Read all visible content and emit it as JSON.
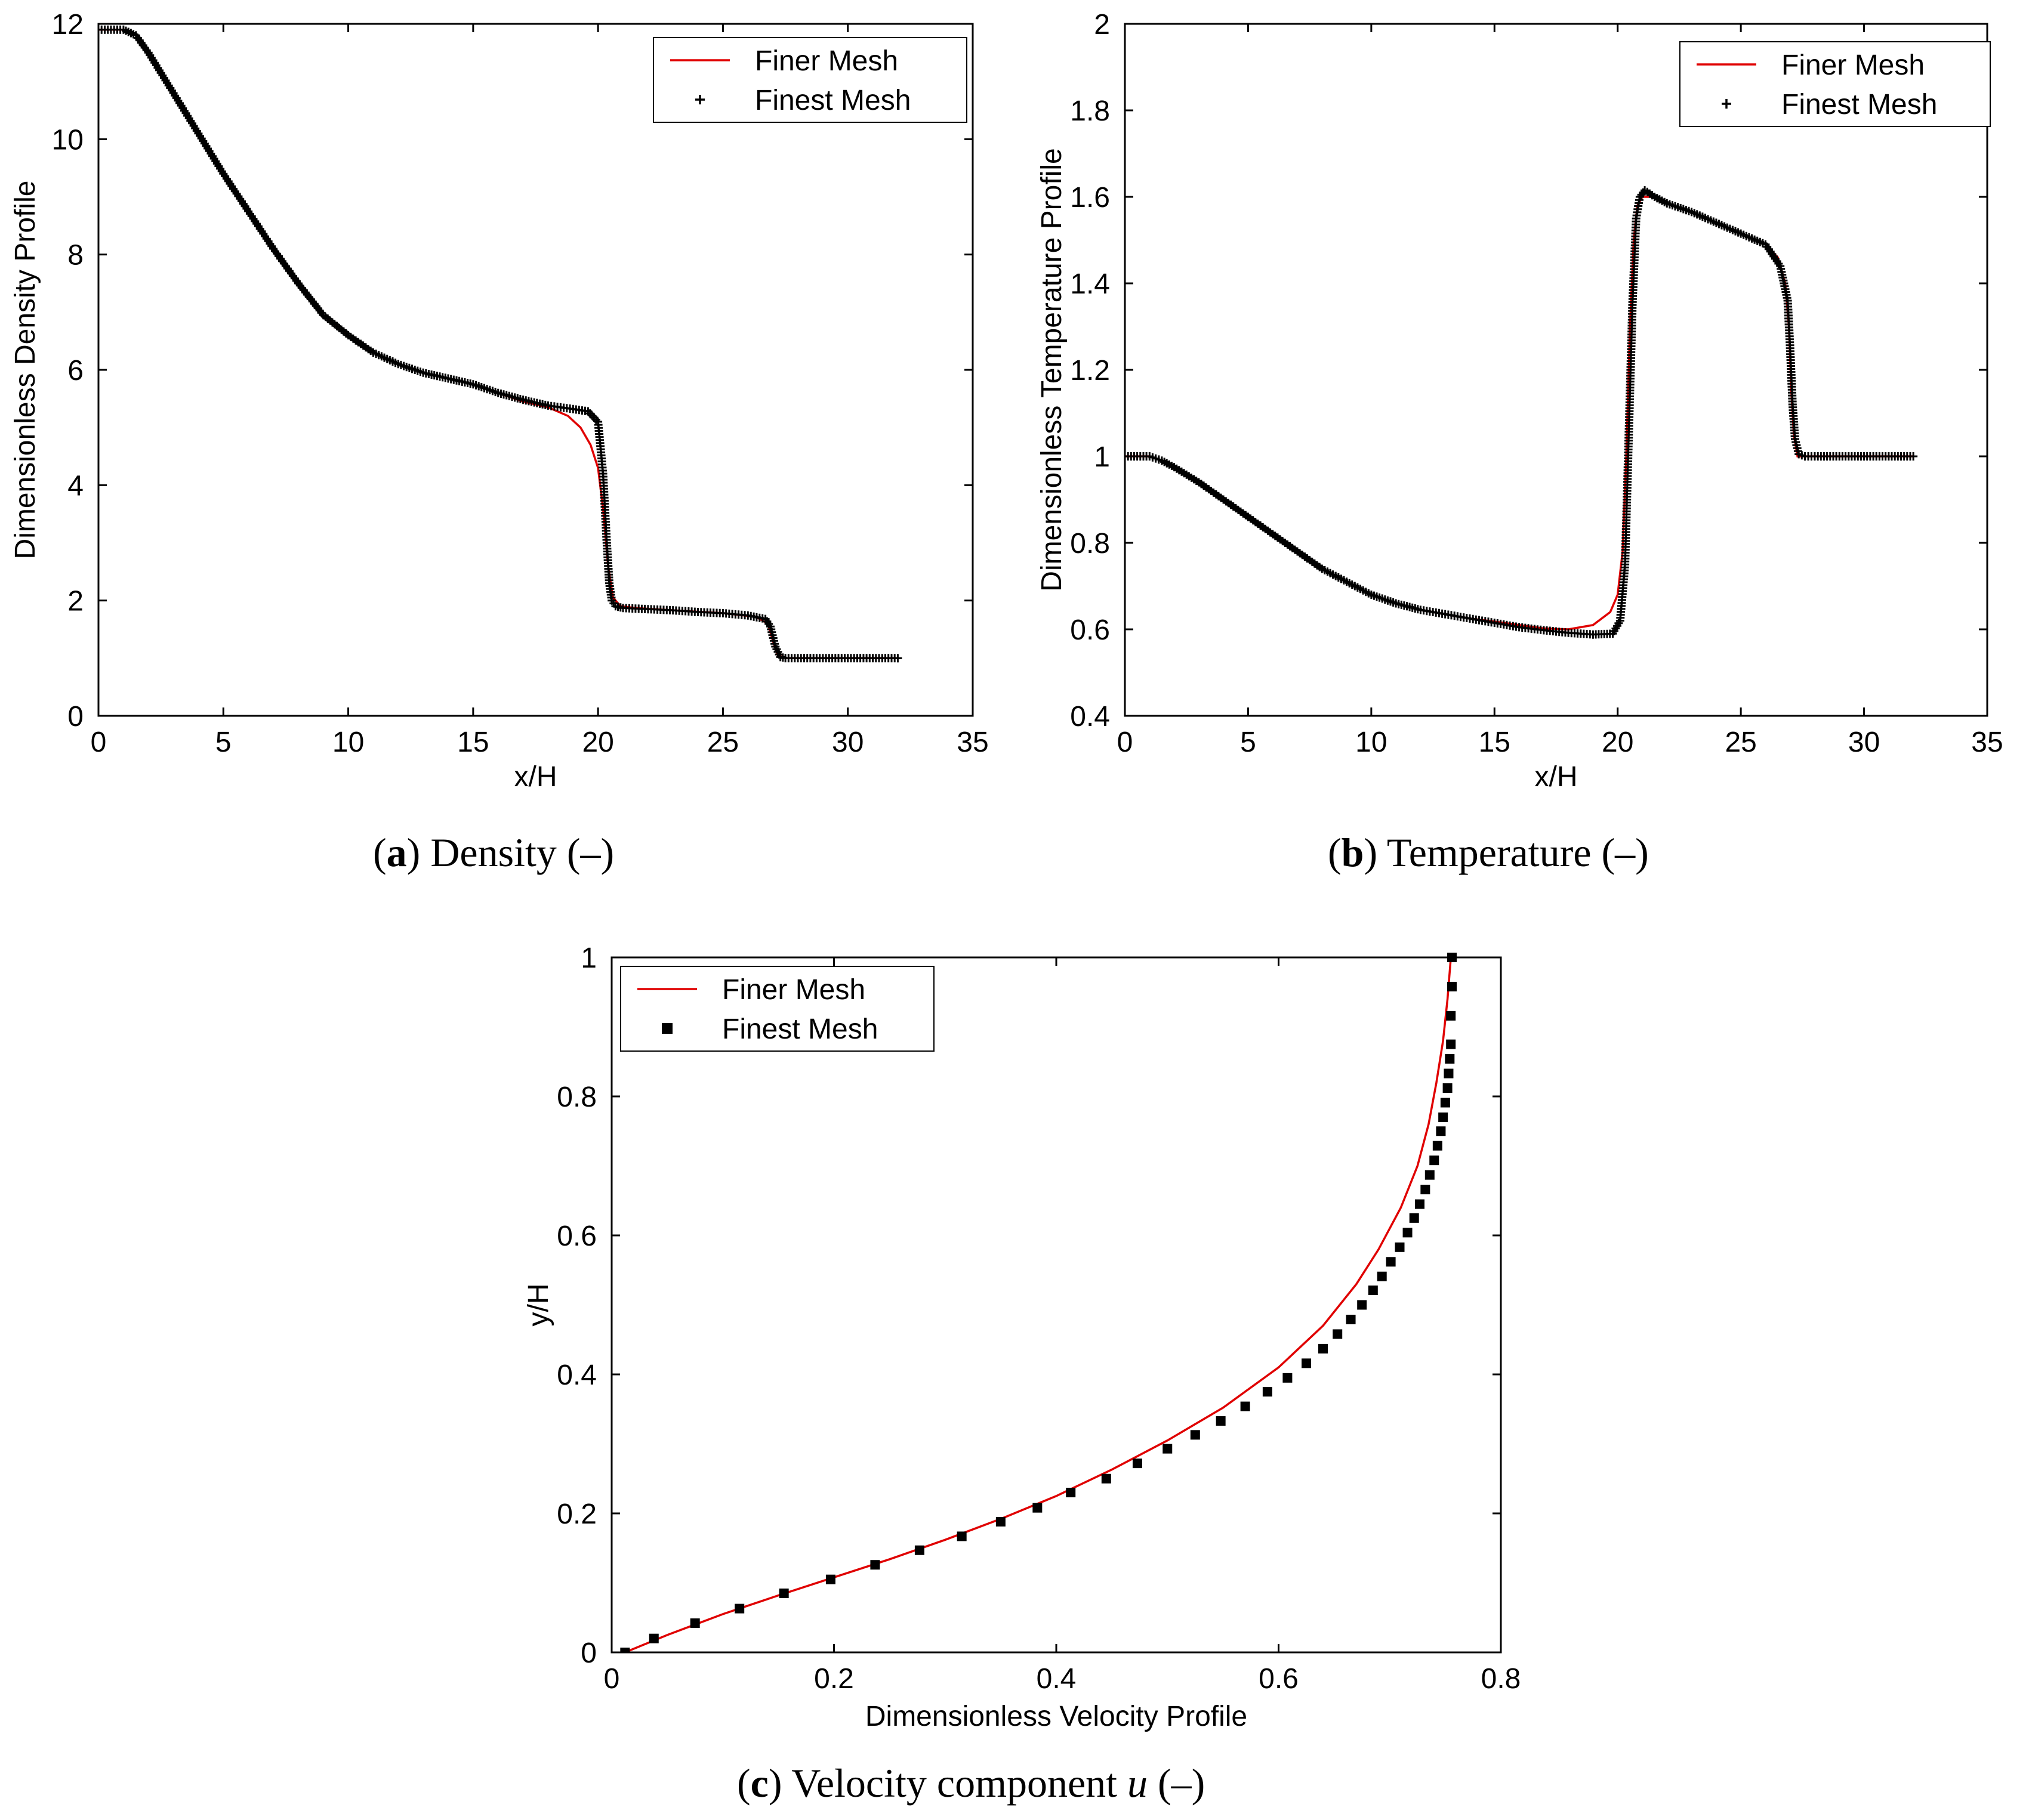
{
  "chart_data": [
    {
      "id": "a",
      "type": "line",
      "xlabel": "x/H",
      "ylabel": "Dimensionless Density Profile",
      "xlim": [
        0,
        35
      ],
      "ylim": [
        0,
        12
      ],
      "xticks": [
        0,
        5,
        10,
        15,
        20,
        25,
        30,
        35
      ],
      "yticks": [
        0,
        2,
        4,
        6,
        8,
        10,
        12
      ],
      "legend": {
        "position": "top-right",
        "entries": [
          "Finer Mesh",
          "Finest Mesh"
        ]
      },
      "caption": {
        "letter": "a",
        "text": " Density (–)"
      },
      "series": [
        {
          "name": "Finer Mesh",
          "style": "line",
          "color": "#e00000",
          "x": [
            0,
            1,
            1.5,
            2,
            3,
            4,
            5,
            6,
            7,
            8,
            9,
            10,
            11,
            12,
            13,
            14,
            15,
            16,
            17,
            18,
            18.8,
            19.3,
            19.7,
            20,
            20.2,
            20.4,
            20.6,
            20.9,
            21.5,
            23,
            25,
            26.3,
            26.8,
            27,
            27.2,
            27.5,
            28,
            30,
            32
          ],
          "y": [
            11.9,
            11.9,
            11.8,
            11.5,
            10.8,
            10.1,
            9.4,
            8.75,
            8.1,
            7.5,
            6.95,
            6.6,
            6.3,
            6.1,
            5.95,
            5.85,
            5.75,
            5.6,
            5.45,
            5.35,
            5.2,
            5.0,
            4.7,
            4.3,
            3.6,
            2.6,
            2.05,
            1.9,
            1.87,
            1.83,
            1.78,
            1.72,
            1.6,
            1.3,
            1.05,
            1.0,
            1.0,
            1.0,
            1.0
          ]
        },
        {
          "name": "Finest Mesh",
          "style": "plus",
          "color": "#000000",
          "x": [
            0,
            1,
            1.5,
            2,
            3,
            4,
            5,
            6,
            7,
            8,
            9,
            10,
            11,
            12,
            13,
            14,
            15,
            16,
            17,
            18,
            19,
            19.6,
            20,
            20.2,
            20.35,
            20.45,
            20.55,
            20.7,
            21,
            22,
            23,
            24,
            25,
            26,
            26.7,
            26.9,
            27.1,
            27.3,
            27.5,
            28,
            29,
            30,
            31,
            32
          ],
          "y": [
            11.9,
            11.9,
            11.8,
            11.5,
            10.8,
            10.1,
            9.4,
            8.75,
            8.1,
            7.5,
            6.95,
            6.6,
            6.3,
            6.1,
            5.95,
            5.85,
            5.75,
            5.6,
            5.48,
            5.38,
            5.32,
            5.28,
            5.1,
            4.2,
            3.0,
            2.3,
            2.0,
            1.9,
            1.87,
            1.85,
            1.83,
            1.8,
            1.78,
            1.74,
            1.68,
            1.55,
            1.2,
            1.02,
            1.0,
            1.0,
            1.0,
            1.0,
            1.0,
            1.0
          ]
        }
      ]
    },
    {
      "id": "b",
      "type": "line",
      "xlabel": "x/H",
      "ylabel": "Dimensionless Temperature Profile",
      "xlim": [
        0,
        35
      ],
      "ylim": [
        0.4,
        2
      ],
      "xticks": [
        0,
        5,
        10,
        15,
        20,
        25,
        30,
        35
      ],
      "yticks": [
        0.4,
        0.6,
        0.8,
        1,
        1.2,
        1.4,
        1.6,
        1.8,
        2
      ],
      "legend": {
        "position": "top-right",
        "entries": [
          "Finer Mesh",
          "Finest Mesh"
        ]
      },
      "caption": {
        "letter": "b",
        "text": " Temperature (–)"
      },
      "series": [
        {
          "name": "Finer Mesh",
          "style": "line",
          "color": "#e00000",
          "x": [
            0,
            1,
            1.5,
            2,
            3,
            4,
            5,
            6,
            7,
            8,
            9,
            10,
            11,
            12,
            13,
            14,
            15,
            16,
            17,
            18,
            19,
            19.7,
            20,
            20.2,
            20.35,
            20.5,
            20.65,
            20.8,
            21,
            21.5,
            22,
            23,
            24,
            25,
            26,
            26.5,
            26.8,
            26.95,
            27.05,
            27.15,
            27.3,
            27.6,
            28,
            30,
            32
          ],
          "y": [
            1.0,
            1.0,
            0.99,
            0.975,
            0.94,
            0.9,
            0.86,
            0.82,
            0.78,
            0.74,
            0.71,
            0.68,
            0.66,
            0.645,
            0.635,
            0.625,
            0.618,
            0.61,
            0.602,
            0.6,
            0.61,
            0.64,
            0.68,
            0.78,
            1.0,
            1.3,
            1.5,
            1.58,
            1.6,
            1.6,
            1.585,
            1.565,
            1.54,
            1.515,
            1.49,
            1.46,
            1.4,
            1.3,
            1.15,
            1.05,
            1.0,
            1.0,
            1.0,
            1.0,
            1.0
          ]
        },
        {
          "name": "Finest Mesh",
          "style": "plus",
          "color": "#000000",
          "x": [
            0,
            1,
            1.5,
            2,
            3,
            4,
            5,
            6,
            7,
            8,
            9,
            10,
            11,
            12,
            13,
            14,
            15,
            16,
            17,
            18,
            19,
            19.8,
            20.1,
            20.3,
            20.45,
            20.6,
            20.75,
            20.9,
            21.1,
            21.5,
            22,
            23,
            24,
            25,
            26,
            26.6,
            26.9,
            27.0,
            27.1,
            27.2,
            27.35,
            27.6,
            28,
            29,
            30,
            31,
            32
          ],
          "y": [
            1.0,
            1.0,
            0.99,
            0.975,
            0.94,
            0.9,
            0.86,
            0.82,
            0.78,
            0.74,
            0.71,
            0.68,
            0.66,
            0.645,
            0.635,
            0.625,
            0.615,
            0.605,
            0.598,
            0.592,
            0.588,
            0.59,
            0.62,
            0.75,
            1.05,
            1.35,
            1.55,
            1.6,
            1.615,
            1.6,
            1.585,
            1.565,
            1.54,
            1.515,
            1.49,
            1.44,
            1.36,
            1.25,
            1.12,
            1.04,
            1.005,
            1.0,
            1.0,
            1.0,
            1.0,
            1.0,
            1.0
          ]
        }
      ]
    },
    {
      "id": "c",
      "type": "line",
      "xlabel": "Dimensionless Velocity Profile",
      "ylabel": "y/H",
      "xlim": [
        0,
        0.8
      ],
      "ylim": [
        0,
        1
      ],
      "xticks": [
        0,
        0.2,
        0.4,
        0.6,
        0.8
      ],
      "yticks": [
        0,
        0.2,
        0.4,
        0.6,
        0.8,
        1
      ],
      "legend": {
        "position": "top-left",
        "entries": [
          "Finer Mesh",
          "Finest Mesh"
        ]
      },
      "caption": {
        "letter": "c",
        "text": " Velocity component ",
        "var": "u",
        "tail": " (–)"
      },
      "series": [
        {
          "name": "Finer Mesh",
          "style": "line",
          "color": "#e00000",
          "x": [
            0.012,
            0.05,
            0.1,
            0.15,
            0.2,
            0.25,
            0.3,
            0.35,
            0.4,
            0.45,
            0.5,
            0.55,
            0.6,
            0.64,
            0.67,
            0.69,
            0.71,
            0.725,
            0.735,
            0.742,
            0.748,
            0.752,
            0.755
          ],
          "y": [
            0.0,
            0.025,
            0.055,
            0.082,
            0.108,
            0.134,
            0.162,
            0.192,
            0.225,
            0.263,
            0.305,
            0.352,
            0.41,
            0.47,
            0.53,
            0.58,
            0.64,
            0.7,
            0.76,
            0.82,
            0.88,
            0.94,
            1.0
          ]
        },
        {
          "name": "Finest Mesh",
          "style": "square",
          "color": "#000000",
          "x": [
            0.012,
            0.038,
            0.075,
            0.115,
            0.155,
            0.197,
            0.237,
            0.277,
            0.315,
            0.35,
            0.383,
            0.413,
            0.445,
            0.473,
            0.5,
            0.525,
            0.548,
            0.57,
            0.59,
            0.608,
            0.625,
            0.64,
            0.653,
            0.665,
            0.675,
            0.685,
            0.693,
            0.701,
            0.709,
            0.716,
            0.722,
            0.727,
            0.732,
            0.736,
            0.74,
            0.743,
            0.746,
            0.748,
            0.75,
            0.752,
            0.753,
            0.754,
            0.755,
            0.755,
            0.756,
            0.756
          ],
          "y": [
            0.0,
            0.02,
            0.042,
            0.063,
            0.085,
            0.105,
            0.126,
            0.147,
            0.167,
            0.188,
            0.208,
            0.23,
            0.25,
            0.272,
            0.293,
            0.313,
            0.333,
            0.354,
            0.375,
            0.395,
            0.416,
            0.437,
            0.458,
            0.479,
            0.5,
            0.521,
            0.541,
            0.562,
            0.583,
            0.604,
            0.625,
            0.645,
            0.666,
            0.687,
            0.708,
            0.729,
            0.75,
            0.77,
            0.791,
            0.812,
            0.833,
            0.854,
            0.875,
            0.916,
            0.958,
            1.0
          ]
        }
      ]
    }
  ]
}
